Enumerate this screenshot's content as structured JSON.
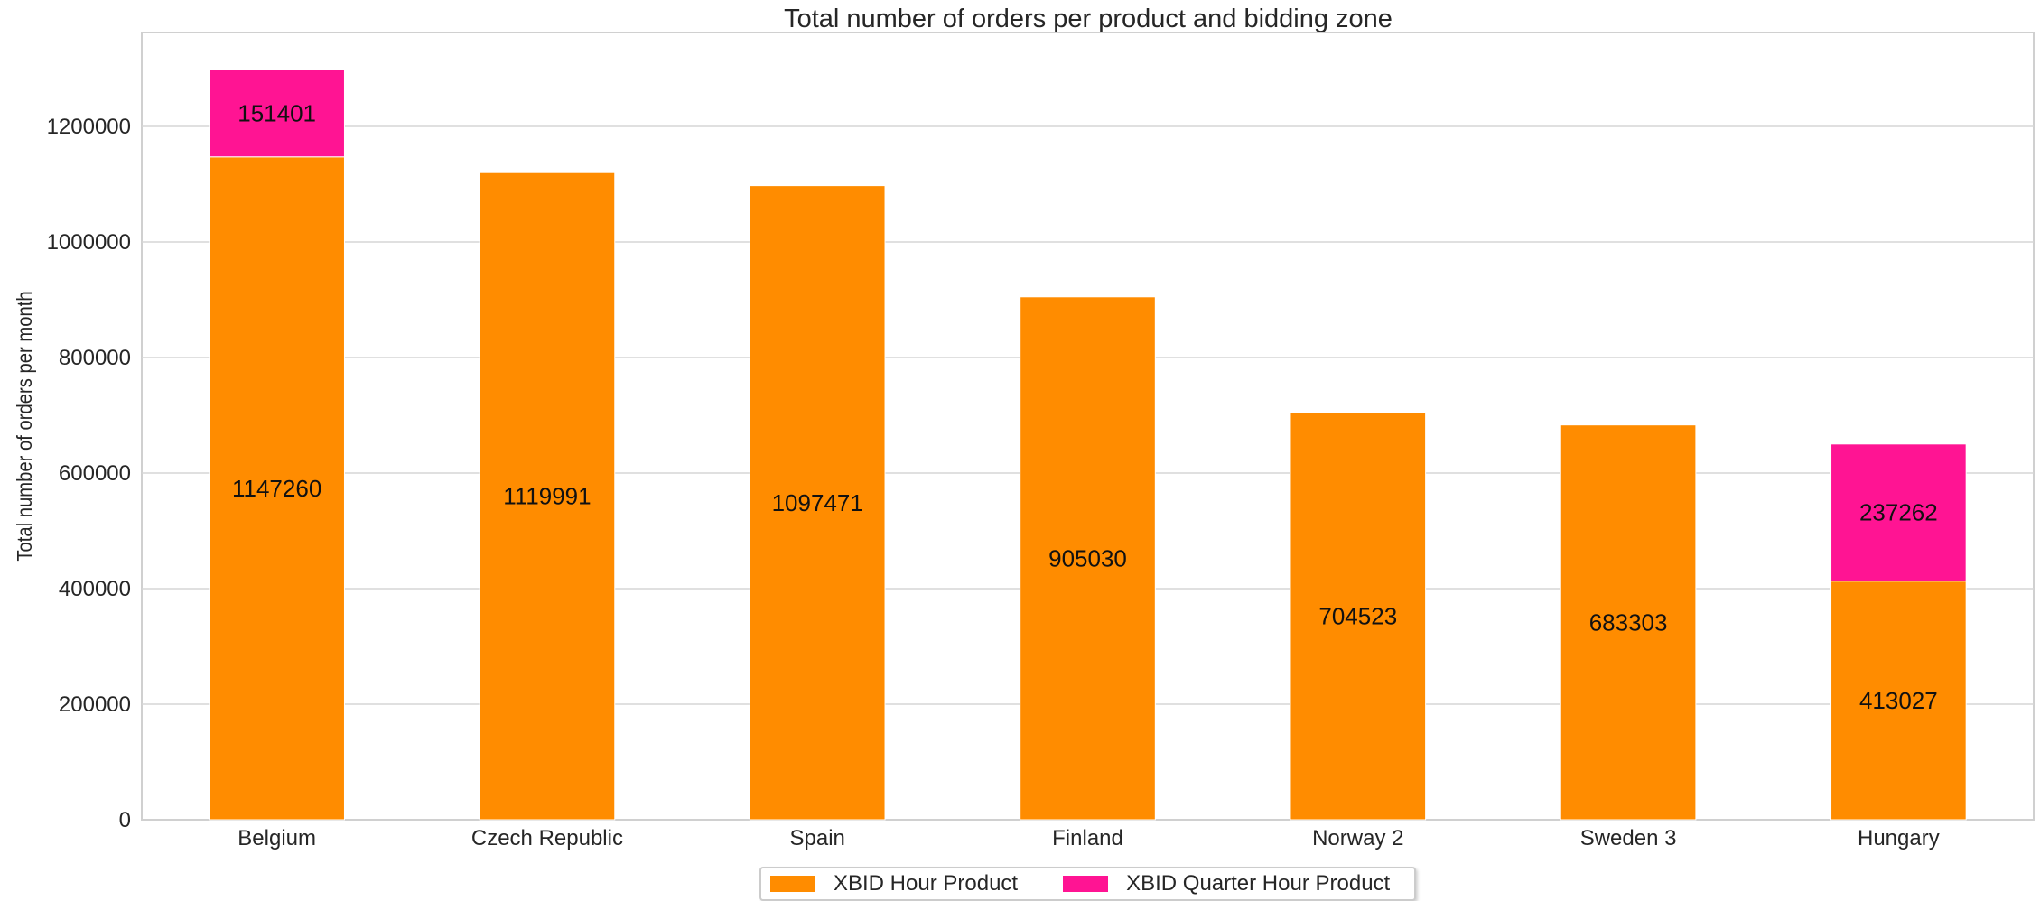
{
  "chart_data": {
    "type": "bar",
    "stacked": true,
    "title": "Total number of orders per product and bidding zone",
    "xlabel": "",
    "ylabel": "Total number of orders per month",
    "categories": [
      "Belgium",
      "Czech Republic",
      "Spain",
      "Finland",
      "Norway 2",
      "Sweden 3",
      "Hungary"
    ],
    "series": [
      {
        "name": "XBID Hour Product",
        "color": "#ff8c00",
        "values": [
          1147260,
          1119991,
          1097471,
          905030,
          704523,
          683303,
          413027
        ]
      },
      {
        "name": "XBID Quarter Hour Product",
        "color": "#ff1493",
        "values": [
          151401,
          null,
          null,
          null,
          null,
          null,
          237262
        ]
      }
    ],
    "ylim": [
      0,
      1365000
    ],
    "yticks": [
      0,
      200000,
      400000,
      600000,
      800000,
      1000000,
      1200000
    ],
    "grid": true,
    "legend_position": "bottom-center"
  }
}
